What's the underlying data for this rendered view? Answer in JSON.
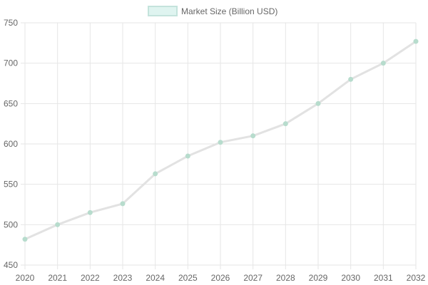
{
  "colors": {
    "line": "#e2e2e2",
    "point": "#b7dccd",
    "legend_fill": "#dff4f0",
    "legend_stroke": "#c4e3dc",
    "grid": "#e6e6e6",
    "text": "#666666"
  },
  "chart_data": {
    "type": "line",
    "legend": {
      "position": "top",
      "entries": [
        "Market Size (Billion USD)"
      ]
    },
    "grid": true,
    "x": [
      "2020",
      "2021",
      "2022",
      "2023",
      "2024",
      "2025",
      "2026",
      "2027",
      "2028",
      "2029",
      "2030",
      "2031",
      "2032"
    ],
    "series": [
      {
        "name": "Market Size (Billion USD)",
        "values": [
          482,
          500,
          515,
          526,
          563,
          585,
          602,
          610,
          625,
          650,
          680,
          700,
          727
        ]
      }
    ],
    "ylim": [
      450,
      750
    ],
    "yticks": [
      "450",
      "500",
      "550",
      "600",
      "650",
      "700",
      "750"
    ]
  }
}
